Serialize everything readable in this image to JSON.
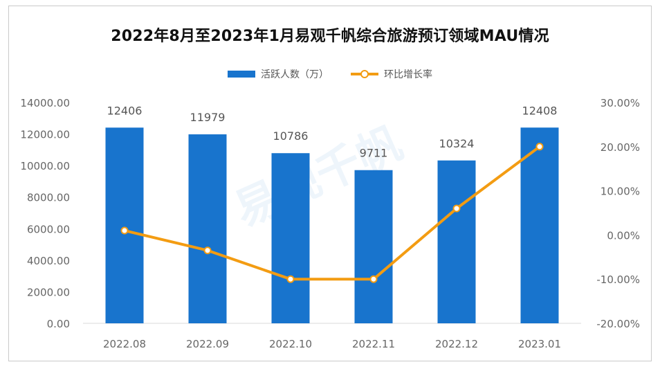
{
  "chart_data": {
    "type": "bar",
    "title": "2022年8月至2023年1月易观千帆综合旅游预订领域MAU情况",
    "categories": [
      "2022.08",
      "2022.09",
      "2022.10",
      "2022.11",
      "2022.12",
      "2023.01"
    ],
    "series": [
      {
        "name": "活跃人数（万）",
        "type": "bar",
        "axis": "left",
        "color": "#1874CD",
        "values": [
          12406,
          11979,
          10786,
          9711,
          10324,
          12408
        ],
        "labels": [
          "12406",
          "11979",
          "10786",
          "9711",
          "10324",
          "12408"
        ]
      },
      {
        "name": "环比增长率",
        "type": "line",
        "axis": "right",
        "color": "#F39C12",
        "values": [
          0.01,
          -0.035,
          -0.1,
          -0.1,
          0.06,
          0.2
        ]
      }
    ],
    "y_left": {
      "ylim": [
        0,
        14000
      ],
      "ticks": [
        "0.00",
        "2000.00",
        "4000.00",
        "6000.00",
        "8000.00",
        "10000.00",
        "12000.00",
        "14000.00"
      ]
    },
    "y_right": {
      "ylim": [
        -0.2,
        0.3
      ],
      "ticks": [
        "-20.00%",
        "-10.00%",
        "0.00%",
        "10.00%",
        "20.00%",
        "30.00%"
      ]
    },
    "legend_position": "top",
    "grid": false
  },
  "watermark": "易观千帆"
}
